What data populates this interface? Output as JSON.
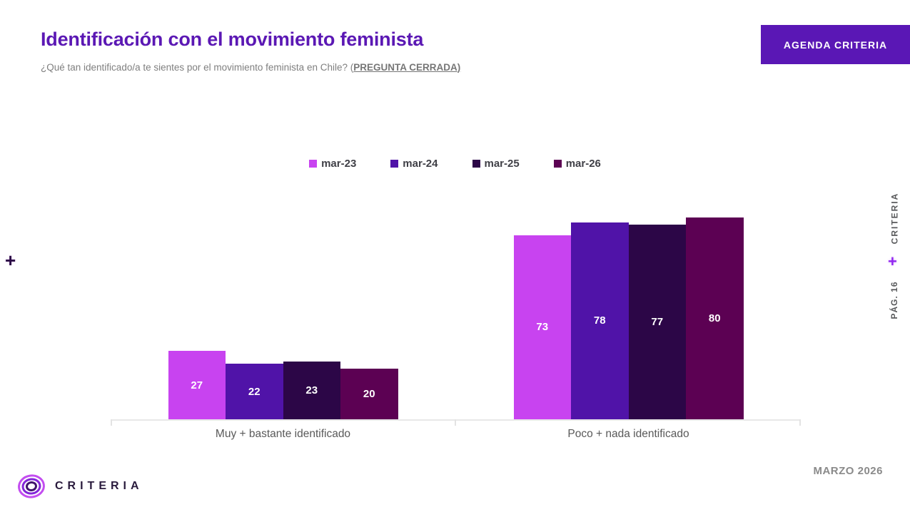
{
  "header": {
    "title": "Identificación con el movimiento feminista",
    "subtitle_main": "¿Qué tan identificado/a te sientes por el movimiento feminista en Chile? (",
    "subtitle_emphasis": "PREGUNTA CERRADA",
    "subtitle_close": ")",
    "agenda_button_label": "AGENDA CRITERIA"
  },
  "chart_data": {
    "type": "bar",
    "title": "Identificación con el movimiento feminista",
    "categories": [
      "Muy + bastante identificado",
      "Poco + nada identificado"
    ],
    "series": [
      {
        "name": "mar-23",
        "color": "#c843f0",
        "values": [
          27,
          73
        ]
      },
      {
        "name": "mar-24",
        "color": "#5013a8",
        "values": [
          22,
          78
        ]
      },
      {
        "name": "mar-25",
        "color": "#2c0647",
        "values": [
          23,
          77
        ]
      },
      {
        "name": "mar-26",
        "color": "#5c0153",
        "values": [
          20,
          80
        ]
      }
    ],
    "ylim": [
      0,
      100
    ],
    "grid": false,
    "legend_position": "top",
    "data_labels": "inside-center-white",
    "xlabel": "",
    "ylabel": ""
  },
  "side_rail": {
    "brand": "CRITERIA",
    "plus": "+",
    "page": "PÁG. 16"
  },
  "decor": {
    "left_plus": "+"
  },
  "footer": {
    "logo_text": "CRITERIA",
    "date": "MARZO 2026"
  },
  "colors": {
    "title_purple": "#5b18b4",
    "button_purple": "#5a17b5",
    "axis_gray": "#e8e8e8",
    "label_gray": "#595959",
    "date_gray": "#8a8a8a",
    "rail_plus_purple": "#9127f0",
    "left_plus_dark": "#2b0a45"
  }
}
